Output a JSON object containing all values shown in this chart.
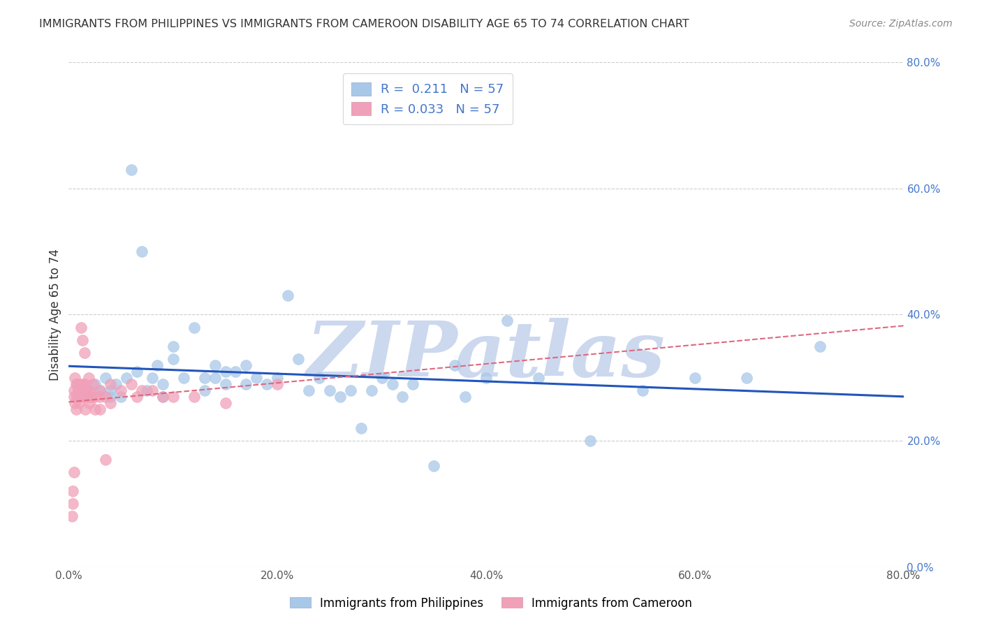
{
  "title": "IMMIGRANTS FROM PHILIPPINES VS IMMIGRANTS FROM CAMEROON DISABILITY AGE 65 TO 74 CORRELATION CHART",
  "source": "Source: ZipAtlas.com",
  "ylabel": "Disability Age 65 to 74",
  "legend_label_1": "Immigrants from Philippines",
  "legend_label_2": "Immigrants from Cameroon",
  "R1": 0.211,
  "N1": 57,
  "R2": 0.033,
  "N2": 57,
  "xlim": [
    0.0,
    0.8
  ],
  "ylim": [
    0.0,
    0.8
  ],
  "xticks": [
    0.0,
    0.2,
    0.4,
    0.6,
    0.8
  ],
  "yticks": [
    0.0,
    0.2,
    0.4,
    0.6,
    0.8
  ],
  "color_blue": "#a8c8e8",
  "color_pink": "#f0a0b8",
  "line_color_blue": "#2255bb",
  "line_color_pink": "#e06880",
  "watermark": "ZIPatlas",
  "watermark_color": "#ccd8ee",
  "scatter_blue_x": [
    0.02,
    0.025,
    0.03,
    0.035,
    0.04,
    0.04,
    0.045,
    0.05,
    0.055,
    0.06,
    0.065,
    0.07,
    0.075,
    0.08,
    0.085,
    0.09,
    0.09,
    0.1,
    0.1,
    0.11,
    0.12,
    0.13,
    0.13,
    0.14,
    0.14,
    0.15,
    0.15,
    0.16,
    0.17,
    0.17,
    0.18,
    0.19,
    0.2,
    0.21,
    0.22,
    0.23,
    0.24,
    0.25,
    0.26,
    0.27,
    0.28,
    0.29,
    0.3,
    0.31,
    0.32,
    0.33,
    0.35,
    0.37,
    0.38,
    0.4,
    0.42,
    0.45,
    0.5,
    0.55,
    0.6,
    0.65,
    0.72
  ],
  "scatter_blue_y": [
    0.27,
    0.29,
    0.28,
    0.3,
    0.28,
    0.27,
    0.29,
    0.27,
    0.3,
    0.63,
    0.31,
    0.5,
    0.28,
    0.3,
    0.32,
    0.29,
    0.27,
    0.35,
    0.33,
    0.3,
    0.38,
    0.3,
    0.28,
    0.32,
    0.3,
    0.29,
    0.31,
    0.31,
    0.32,
    0.29,
    0.3,
    0.29,
    0.3,
    0.43,
    0.33,
    0.28,
    0.3,
    0.28,
    0.27,
    0.28,
    0.22,
    0.28,
    0.3,
    0.29,
    0.27,
    0.29,
    0.16,
    0.32,
    0.27,
    0.3,
    0.39,
    0.3,
    0.2,
    0.28,
    0.3,
    0.3,
    0.35
  ],
  "scatter_pink_x": [
    0.003,
    0.004,
    0.004,
    0.005,
    0.005,
    0.005,
    0.006,
    0.006,
    0.007,
    0.007,
    0.008,
    0.008,
    0.009,
    0.009,
    0.01,
    0.01,
    0.01,
    0.01,
    0.011,
    0.011,
    0.012,
    0.012,
    0.013,
    0.013,
    0.014,
    0.015,
    0.015,
    0.016,
    0.016,
    0.017,
    0.018,
    0.018,
    0.019,
    0.02,
    0.02,
    0.021,
    0.022,
    0.023,
    0.025,
    0.025,
    0.03,
    0.03,
    0.03,
    0.035,
    0.035,
    0.04,
    0.04,
    0.05,
    0.06,
    0.065,
    0.07,
    0.08,
    0.09,
    0.1,
    0.12,
    0.15,
    0.2
  ],
  "scatter_pink_y": [
    0.08,
    0.1,
    0.12,
    0.27,
    0.15,
    0.28,
    0.26,
    0.3,
    0.25,
    0.29,
    0.27,
    0.29,
    0.28,
    0.28,
    0.27,
    0.28,
    0.26,
    0.28,
    0.27,
    0.29,
    0.28,
    0.38,
    0.36,
    0.27,
    0.29,
    0.34,
    0.29,
    0.27,
    0.25,
    0.28,
    0.28,
    0.27,
    0.3,
    0.26,
    0.28,
    0.27,
    0.27,
    0.29,
    0.25,
    0.27,
    0.28,
    0.27,
    0.25,
    0.27,
    0.17,
    0.29,
    0.26,
    0.28,
    0.29,
    0.27,
    0.28,
    0.28,
    0.27,
    0.27,
    0.27,
    0.26,
    0.29
  ]
}
